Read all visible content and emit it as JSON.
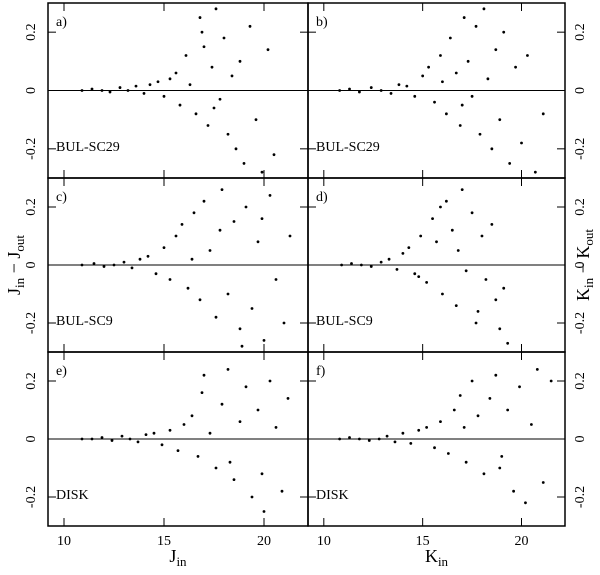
{
  "chart_data": [
    {
      "type": "scatter",
      "panel_label": "a)",
      "annotation": "BUL-SC29",
      "x": [
        10.9,
        11.4,
        11.9,
        12.3,
        12.8,
        13.2,
        13.6,
        14.0,
        14.3,
        14.7,
        15.0,
        15.3,
        15.6,
        15.8,
        16.1,
        16.3,
        16.6,
        16.8,
        17.0,
        17.2,
        17.4,
        17.6,
        17.8,
        18.0,
        18.2,
        18.4,
        18.6,
        18.8,
        19.0,
        19.3,
        19.6,
        19.9,
        20.2,
        20.5,
        16.9,
        17.5
      ],
      "y": [
        0,
        0.005,
        0,
        -0.005,
        0.01,
        0,
        0.015,
        -0.01,
        0.02,
        0.03,
        -0.02,
        0.04,
        0.06,
        -0.05,
        0.12,
        0.02,
        -0.08,
        0.25,
        0.15,
        -0.12,
        0.08,
        0.28,
        -0.03,
        0.18,
        -0.15,
        0.05,
        -0.2,
        0.1,
        -0.25,
        0.22,
        -0.1,
        -0.28,
        0.14,
        -0.22,
        0.2,
        -0.06
      ],
      "xlim": [
        9.2,
        22.2
      ],
      "ylim": [
        -0.3,
        0.3
      ],
      "xticks": [
        10,
        15,
        20
      ],
      "yticks": [
        -0.2,
        0,
        0.2
      ],
      "hline": 0,
      "color": "#000000"
    },
    {
      "type": "scatter",
      "panel_label": "b)",
      "annotation": "BUL-SC29",
      "x": [
        10.8,
        11.3,
        11.8,
        12.4,
        12.9,
        13.4,
        13.8,
        14.2,
        14.6,
        15.0,
        15.3,
        15.6,
        15.9,
        16.2,
        16.4,
        16.7,
        16.9,
        17.1,
        17.3,
        17.5,
        17.7,
        17.9,
        18.1,
        18.3,
        18.5,
        18.7,
        18.9,
        19.1,
        19.4,
        19.7,
        20.0,
        20.3,
        20.7,
        21.1,
        16.0,
        17.0
      ],
      "y": [
        0,
        0.005,
        -0.005,
        0.01,
        0,
        -0.01,
        0.02,
        0.015,
        -0.02,
        0.05,
        0.08,
        -0.04,
        0.12,
        -0.08,
        0.18,
        0.06,
        -0.12,
        0.25,
        0.1,
        -0.02,
        0.22,
        -0.15,
        0.28,
        0.04,
        -0.2,
        0.14,
        -0.1,
        0.2,
        -0.25,
        0.08,
        -0.18,
        0.12,
        -0.28,
        -0.08,
        0.03,
        -0.05
      ],
      "xlim": [
        9.2,
        22.2
      ],
      "ylim": [
        -0.3,
        0.3
      ],
      "xticks": [
        10,
        15,
        20
      ],
      "yticks": [
        -0.2,
        0,
        0.2
      ],
      "hline": 0,
      "color": "#000000"
    },
    {
      "type": "scatter",
      "panel_label": "c)",
      "annotation": "BUL-SC9",
      "ylabel": [
        {
          "text": "J"
        },
        {
          "text": "in",
          "sub": true
        },
        {
          "text": " − "
        },
        {
          "text": "J"
        },
        {
          "text": "out",
          "sub": true
        }
      ],
      "x": [
        10.9,
        11.5,
        12.0,
        12.5,
        13.0,
        13.4,
        13.8,
        14.2,
        14.6,
        15.0,
        15.3,
        15.6,
        15.9,
        16.2,
        16.5,
        16.8,
        17.0,
        17.3,
        17.6,
        17.9,
        18.2,
        18.5,
        18.8,
        19.1,
        19.4,
        19.7,
        20.0,
        20.3,
        20.6,
        21.0,
        21.3,
        17.8,
        18.9,
        16.4,
        19.9
      ],
      "y": [
        0,
        0.005,
        -0.005,
        0,
        0.01,
        -0.01,
        0.02,
        0.03,
        -0.03,
        0.06,
        -0.05,
        0.1,
        0.14,
        -0.08,
        0.18,
        -0.12,
        0.22,
        0.05,
        -0.18,
        0.26,
        -0.1,
        0.15,
        -0.22,
        0.2,
        -0.15,
        0.08,
        -0.26,
        0.24,
        -0.05,
        -0.2,
        0.1,
        0.12,
        -0.28,
        0.02,
        0.16
      ],
      "xlim": [
        9.2,
        22.2
      ],
      "ylim": [
        -0.3,
        0.3
      ],
      "xticks": [
        10,
        15,
        20
      ],
      "yticks": [
        -0.2,
        0,
        0.2
      ],
      "hline": 0,
      "color": "#000000"
    },
    {
      "type": "scatter",
      "panel_label": "d)",
      "annotation": "BUL-SC9",
      "ylabel": [
        {
          "text": "K"
        },
        {
          "text": "in",
          "sub": true
        },
        {
          "text": " − "
        },
        {
          "text": "K"
        },
        {
          "text": "out",
          "sub": true
        }
      ],
      "x": [
        10.9,
        11.4,
        11.9,
        12.4,
        12.9,
        13.3,
        13.7,
        14.0,
        14.3,
        14.6,
        14.9,
        15.2,
        15.5,
        15.7,
        16.0,
        16.2,
        16.5,
        16.7,
        17.0,
        17.2,
        17.5,
        17.7,
        18.0,
        18.2,
        18.5,
        18.7,
        18.9,
        19.1,
        19.3,
        15.9,
        16.8,
        17.8,
        14.8
      ],
      "y": [
        0,
        0.005,
        0,
        -0.005,
        0.01,
        0.02,
        -0.015,
        0.04,
        0.06,
        -0.03,
        0.1,
        -0.06,
        0.16,
        0.08,
        -0.1,
        0.22,
        0.12,
        -0.14,
        0.26,
        -0.02,
        0.18,
        -0.2,
        0.1,
        -0.05,
        0.14,
        -0.12,
        -0.22,
        -0.08,
        -0.27,
        0.2,
        0.05,
        -0.16,
        -0.04
      ],
      "xlim": [
        9.2,
        22.2
      ],
      "ylim": [
        -0.3,
        0.3
      ],
      "xticks": [
        10,
        15,
        20
      ],
      "yticks": [
        -0.2,
        0,
        0.2
      ],
      "hline": 0,
      "color": "#000000"
    },
    {
      "type": "scatter",
      "panel_label": "e)",
      "annotation": "DISK",
      "xlabel": [
        {
          "text": "J"
        },
        {
          "text": "in",
          "sub": true
        }
      ],
      "x": [
        10.9,
        11.4,
        11.9,
        12.4,
        12.9,
        13.3,
        13.7,
        14.1,
        14.5,
        14.9,
        15.3,
        15.7,
        16.0,
        16.4,
        16.7,
        17.0,
        17.3,
        17.6,
        17.9,
        18.2,
        18.5,
        18.8,
        19.1,
        19.4,
        19.7,
        20.0,
        20.3,
        20.6,
        20.9,
        21.2,
        16.9,
        18.3,
        19.9
      ],
      "y": [
        0,
        0,
        0.005,
        -0.005,
        0.01,
        0,
        -0.01,
        0.015,
        0.02,
        -0.02,
        0.03,
        -0.04,
        0.05,
        0.08,
        -0.06,
        0.22,
        0.02,
        -0.1,
        0.12,
        0.24,
        -0.14,
        0.06,
        0.18,
        -0.2,
        0.1,
        -0.25,
        0.2,
        0.04,
        -0.18,
        0.14,
        0.16,
        -0.08,
        -0.12
      ],
      "xlim": [
        9.2,
        22.2
      ],
      "ylim": [
        -0.3,
        0.3
      ],
      "xticks": [
        10,
        15,
        20
      ],
      "yticks": [
        -0.2,
        0,
        0.2
      ],
      "hline": 0,
      "color": "#000000"
    },
    {
      "type": "scatter",
      "panel_label": "f)",
      "annotation": "DISK",
      "xlabel": [
        {
          "text": "K"
        },
        {
          "text": "in",
          "sub": true
        }
      ],
      "x": [
        10.8,
        11.3,
        11.8,
        12.3,
        12.8,
        13.2,
        13.6,
        14.0,
        14.4,
        14.8,
        15.2,
        15.6,
        15.9,
        16.3,
        16.6,
        16.9,
        17.2,
        17.5,
        17.8,
        18.1,
        18.4,
        18.7,
        19.0,
        19.3,
        19.6,
        19.9,
        20.2,
        20.5,
        20.8,
        21.1,
        21.5,
        18.9,
        17.1
      ],
      "y": [
        0,
        0.005,
        0,
        -0.005,
        0,
        0.01,
        -0.01,
        0.02,
        -0.015,
        0.03,
        0.04,
        -0.03,
        0.06,
        -0.05,
        0.1,
        0.15,
        -0.08,
        0.2,
        0.08,
        -0.12,
        0.14,
        0.22,
        -0.06,
        0.1,
        -0.18,
        0.18,
        -0.22,
        0.05,
        0.24,
        -0.15,
        0.2,
        -0.1,
        0.04
      ],
      "xlim": [
        9.2,
        22.2
      ],
      "ylim": [
        -0.3,
        0.3
      ],
      "xticks": [
        10,
        15,
        20
      ],
      "yticks": [
        -0.2,
        0,
        0.2
      ],
      "hline": 0,
      "color": "#000000"
    }
  ]
}
